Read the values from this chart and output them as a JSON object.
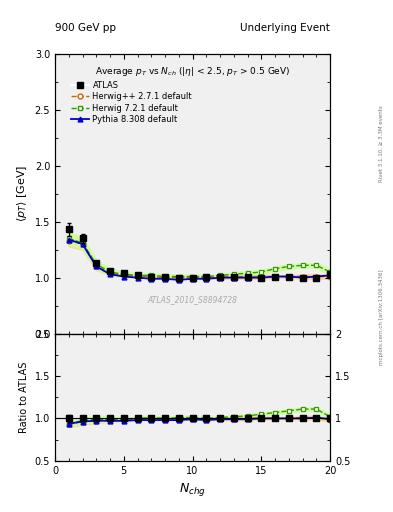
{
  "title_left": "900 GeV pp",
  "title_right": "Underlying Event",
  "plot_title": "Average $p_T$ vs $N_{ch}$ ($|\\eta|$ < 2.5, $p_T$ > 0.5 GeV)",
  "ylabel_main": "$\\langle p_T \\rangle$ [GeV]",
  "ylabel_ratio": "Ratio to ATLAS",
  "xlabel": "$N_{chg}$",
  "ylim_main": [
    0.5,
    3.0
  ],
  "ylim_ratio": [
    0.5,
    2.0
  ],
  "xlim": [
    0,
    20
  ],
  "watermark": "ATLAS_2010_S8894728",
  "right_label": "mcplots.cern.ch [arXiv:1306.3436]",
  "right_label2": "Rivet 3.1.10, ≥ 3.3M events",
  "atlas_x": [
    1,
    2,
    3,
    4,
    5,
    6,
    7,
    8,
    9,
    10,
    11,
    12,
    13,
    14,
    15,
    16,
    17,
    18,
    19,
    20
  ],
  "atlas_y": [
    1.43,
    1.35,
    1.13,
    1.06,
    1.04,
    1.02,
    1.01,
    1.01,
    1.0,
    1.0,
    1.01,
    1.01,
    1.01,
    1.01,
    1.0,
    1.01,
    1.01,
    1.0,
    1.0,
    1.03
  ],
  "atlas_yerr": [
    0.06,
    0.04,
    0.02,
    0.01,
    0.01,
    0.01,
    0.01,
    0.01,
    0.01,
    0.01,
    0.01,
    0.01,
    0.01,
    0.01,
    0.01,
    0.01,
    0.01,
    0.01,
    0.01,
    0.02
  ],
  "herwig_x": [
    1,
    2,
    3,
    4,
    5,
    6,
    7,
    8,
    9,
    10,
    11,
    12,
    13,
    14,
    15,
    16,
    17,
    18,
    19,
    20
  ],
  "herwig_y": [
    1.33,
    1.3,
    1.1,
    1.04,
    1.02,
    1.01,
    1.01,
    1.0,
    1.0,
    1.0,
    1.0,
    1.01,
    1.01,
    1.01,
    1.01,
    1.01,
    1.01,
    1.01,
    1.01,
    1.01
  ],
  "herwig_band_lo": [
    1.28,
    1.25,
    1.07,
    1.02,
    1.01,
    1.0,
    1.0,
    0.99,
    0.99,
    0.99,
    0.99,
    0.99,
    0.99,
    0.99,
    0.99,
    1.0,
    1.0,
    0.99,
    0.99,
    0.99
  ],
  "herwig_band_hi": [
    1.38,
    1.35,
    1.13,
    1.06,
    1.03,
    1.02,
    1.02,
    1.01,
    1.01,
    1.01,
    1.01,
    1.03,
    1.03,
    1.03,
    1.03,
    1.02,
    1.02,
    1.03,
    1.03,
    1.03
  ],
  "herwig72_x": [
    1,
    2,
    3,
    4,
    5,
    6,
    7,
    8,
    9,
    10,
    11,
    12,
    13,
    14,
    15,
    16,
    17,
    18,
    19,
    20
  ],
  "herwig72_y": [
    1.35,
    1.31,
    1.12,
    1.05,
    1.03,
    1.02,
    1.02,
    1.01,
    1.01,
    1.01,
    1.01,
    1.02,
    1.03,
    1.04,
    1.05,
    1.08,
    1.1,
    1.11,
    1.11,
    1.05
  ],
  "herwig72_band_lo": [
    1.29,
    1.26,
    1.08,
    1.02,
    1.01,
    1.0,
    1.0,
    0.99,
    0.99,
    0.99,
    1.0,
    1.01,
    1.01,
    1.02,
    1.03,
    1.06,
    1.08,
    1.09,
    1.09,
    1.02
  ],
  "herwig72_band_hi": [
    1.41,
    1.36,
    1.16,
    1.08,
    1.05,
    1.04,
    1.04,
    1.03,
    1.03,
    1.03,
    1.02,
    1.03,
    1.05,
    1.06,
    1.07,
    1.1,
    1.12,
    1.13,
    1.13,
    1.08
  ],
  "pythia_x": [
    1,
    2,
    3,
    4,
    5,
    6,
    7,
    8,
    9,
    10,
    11,
    12,
    13,
    14,
    15,
    16,
    17,
    18,
    19,
    20
  ],
  "pythia_y": [
    1.34,
    1.3,
    1.1,
    1.03,
    1.01,
    1.0,
    0.99,
    0.99,
    0.98,
    0.99,
    0.99,
    1.0,
    1.0,
    1.0,
    1.0,
    1.01,
    1.01,
    1.0,
    1.01,
    1.02
  ],
  "color_atlas": "#000000",
  "color_herwig": "#cc6600",
  "color_herwig72": "#339900",
  "color_pythia": "#0000cc",
  "color_herwig_band": "#ffcc99",
  "color_herwig72_band": "#ccff99",
  "bg_color": "#f0f0f0"
}
